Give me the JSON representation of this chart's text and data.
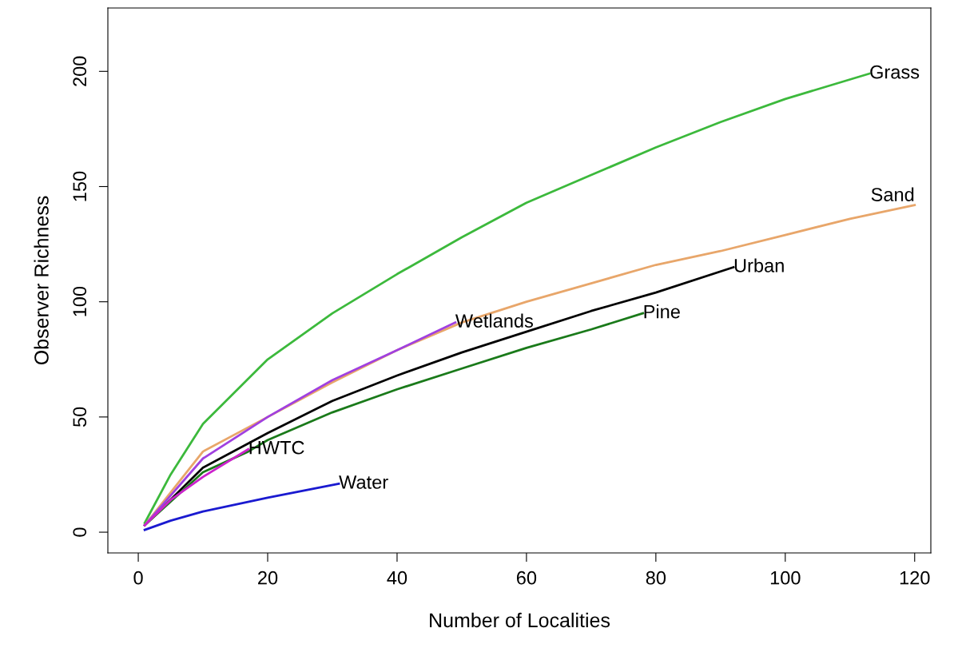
{
  "chart_data": {
    "type": "line",
    "xlabel": "Number of Localities",
    "ylabel": "Observer Richness",
    "xlim": [
      -4.7,
      122.5
    ],
    "ylim": [
      -9,
      227.5
    ],
    "xticks": [
      0,
      20,
      40,
      60,
      80,
      100,
      120
    ],
    "yticks": [
      0,
      50,
      100,
      150,
      200
    ],
    "grid": false,
    "legend": false,
    "marker": "none",
    "line_style": "solid",
    "series": [
      {
        "name": "Grass",
        "color": "#3cb93c",
        "x": [
          1,
          5,
          10,
          20,
          30,
          40,
          50,
          60,
          70,
          80,
          90,
          100,
          113
        ],
        "values": [
          4,
          25,
          47,
          75,
          95,
          112,
          128,
          143,
          155,
          167,
          178,
          188,
          199
        ]
      },
      {
        "name": "Sand",
        "color": "#e8a66a",
        "x": [
          1,
          10,
          20,
          30,
          40,
          50,
          60,
          70,
          80,
          90,
          100,
          110,
          120
        ],
        "values": [
          3,
          35,
          50,
          65,
          79,
          91,
          100,
          108,
          116,
          122,
          129,
          136,
          142
        ]
      },
      {
        "name": "Urban",
        "color": "#000000",
        "x": [
          1,
          10,
          20,
          30,
          40,
          50,
          60,
          70,
          80,
          92
        ],
        "values": [
          3,
          28,
          43,
          57,
          68,
          78,
          87,
          96,
          104,
          115
        ]
      },
      {
        "name": "Pine",
        "color": "#1a7a1a",
        "x": [
          1,
          10,
          17,
          20,
          30,
          40,
          50,
          60,
          70,
          78
        ],
        "values": [
          3,
          26,
          35,
          40,
          52,
          62,
          71,
          80,
          88,
          95
        ]
      },
      {
        "name": "Wetlands",
        "color": "#a040e0",
        "x": [
          1,
          10,
          20,
          30,
          40,
          49
        ],
        "values": [
          3,
          32,
          50,
          66,
          79,
          91
        ]
      },
      {
        "name": "HWTC",
        "color": "#cc22cc",
        "x": [
          1,
          5,
          10,
          17
        ],
        "values": [
          3,
          14,
          24,
          36
        ]
      },
      {
        "name": "Water",
        "color": "#1a1ad0",
        "x": [
          1,
          5,
          10,
          20,
          31
        ],
        "values": [
          1,
          5,
          9,
          15,
          21
        ]
      }
    ]
  }
}
